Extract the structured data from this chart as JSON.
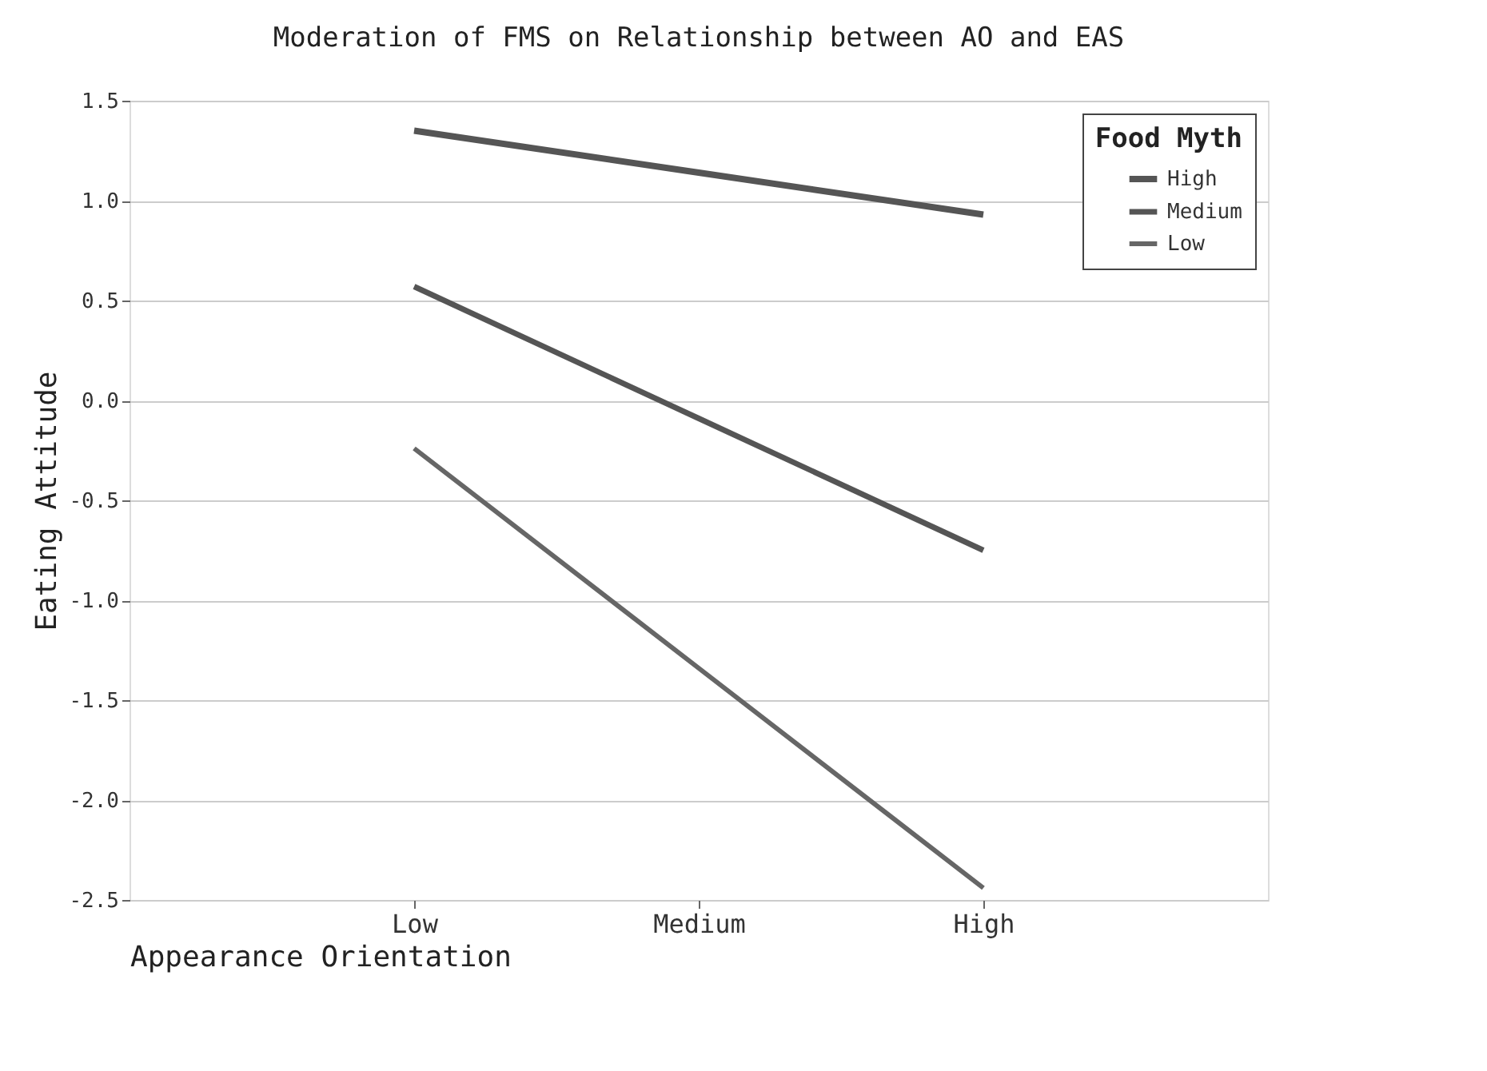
{
  "chart_data": {
    "type": "line",
    "title": "Moderation of FMS on Relationship between AO and EAS",
    "xlabel": "Appearance Orientation",
    "ylabel": "Eating Attitude",
    "legend_title": "Food Myth",
    "categories": [
      "Low",
      "Medium",
      "High"
    ],
    "series": [
      {
        "name": "High",
        "color": "#555555",
        "values": [
          1.35,
          1.14,
          0.93
        ]
      },
      {
        "name": "Medium",
        "color": "#555555",
        "values": [
          0.57,
          -0.09,
          -0.75
        ]
      },
      {
        "name": "Low",
        "color": "#666666",
        "values": [
          -0.24,
          -1.34,
          -2.44
        ]
      }
    ],
    "ylim": [
      -2.5,
      1.5
    ],
    "yticks": [
      -2.5,
      {
        "value": -2,
        "label": "-2.0"
      },
      -1.5,
      {
        "value": -1,
        "label": "-1.0"
      },
      -0.5,
      {
        "value": 0,
        "label": "0.0"
      },
      0.5,
      {
        "value": 1,
        "label": "1.0"
      },
      1.5
    ],
    "grid": "y",
    "legend": "top right",
    "marker": "none",
    "line_style": "solid"
  }
}
